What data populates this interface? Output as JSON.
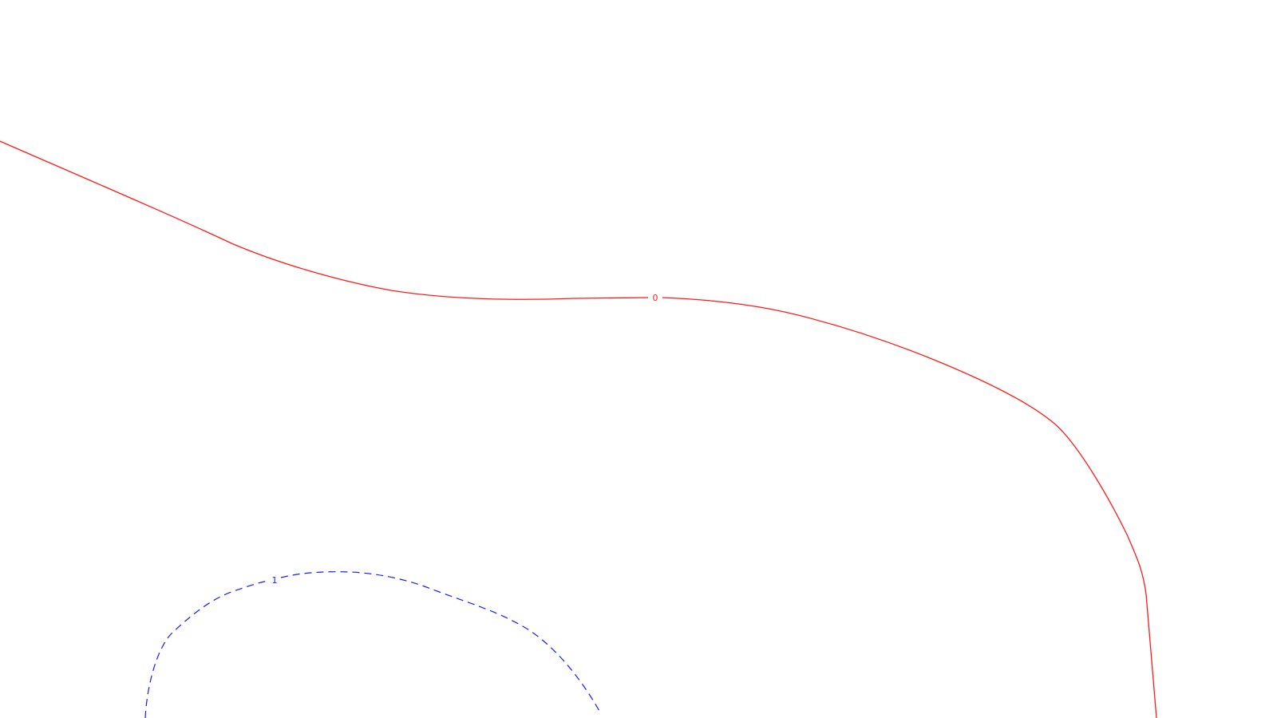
{
  "colors": {
    "background": "#ffffff",
    "contour_0": "#ff1a1a",
    "contour_1": "#1a1aff"
  },
  "contours": [
    {
      "id": "contour-0",
      "label": "0",
      "line_style": "solid",
      "color": "#ff1a1a"
    },
    {
      "id": "contour-1",
      "label": "1",
      "line_style": "dashed",
      "color": "#1a1aff"
    }
  ]
}
